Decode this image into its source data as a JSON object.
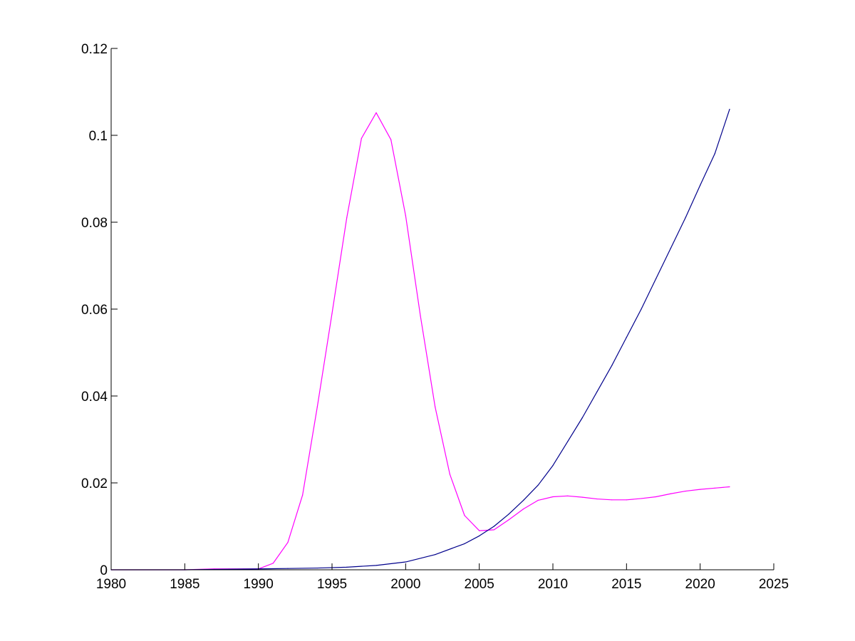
{
  "chart_data": {
    "type": "line",
    "title": "",
    "xlabel": "",
    "ylabel": "",
    "xlim": [
      1980,
      2025
    ],
    "ylim": [
      0,
      0.12
    ],
    "grid": false,
    "x_ticks": [
      1980,
      1985,
      1990,
      1995,
      2000,
      2005,
      2010,
      2015,
      2020,
      2025
    ],
    "x_tick_labels": [
      "1980",
      "1985",
      "1990",
      "1995",
      "2000",
      "2005",
      "2010",
      "2015",
      "2020",
      "2025"
    ],
    "y_ticks": [
      0,
      0.02,
      0.04,
      0.06,
      0.08,
      0.1,
      0.12
    ],
    "y_tick_labels": [
      "0",
      "0.02",
      "0.04",
      "0.06",
      "0.08",
      "0.1",
      "0.12"
    ],
    "series": [
      {
        "color": "#ff00ff",
        "x": [
          1980,
          1985,
          1987,
          1988,
          1989,
          1990,
          1991,
          1992,
          1993,
          1994,
          1995,
          1996,
          1997,
          1998,
          1999,
          2000,
          2001,
          2002,
          2003,
          2004,
          2005,
          2006,
          2007,
          2008,
          2009,
          2010,
          2011,
          2012,
          2013,
          2014,
          2015,
          2016,
          2017,
          2018,
          2019,
          2020,
          2021,
          2022
        ],
        "y": [
          0.0,
          0.0,
          0.0002,
          0.0002,
          0.0002,
          0.0002,
          0.0015,
          0.0063,
          0.0172,
          0.0375,
          0.059,
          0.081,
          0.0993,
          0.1052,
          0.099,
          0.0815,
          0.0585,
          0.0375,
          0.022,
          0.0125,
          0.009,
          0.0092,
          0.0115,
          0.014,
          0.016,
          0.0168,
          0.017,
          0.0167,
          0.0163,
          0.0161,
          0.0161,
          0.0164,
          0.0168,
          0.0175,
          0.0181,
          0.0185,
          0.0188,
          0.0191
        ]
      },
      {
        "color": "#00008b",
        "x": [
          1980,
          1985,
          1990,
          1992,
          1994,
          1996,
          1998,
          2000,
          2002,
          2004,
          2005,
          2006,
          2007,
          2008,
          2009,
          2010,
          2011,
          2012,
          2013,
          2014,
          2015,
          2016,
          2017,
          2018,
          2019,
          2020,
          2021,
          2022
        ],
        "y": [
          0.0,
          0.0,
          0.0002,
          0.0003,
          0.0004,
          0.0006,
          0.001,
          0.0018,
          0.0035,
          0.006,
          0.0078,
          0.01,
          0.0128,
          0.016,
          0.0195,
          0.024,
          0.0295,
          0.035,
          0.041,
          0.047,
          0.0535,
          0.06,
          0.067,
          0.074,
          0.081,
          0.0885,
          0.0958,
          0.106
        ]
      }
    ]
  }
}
